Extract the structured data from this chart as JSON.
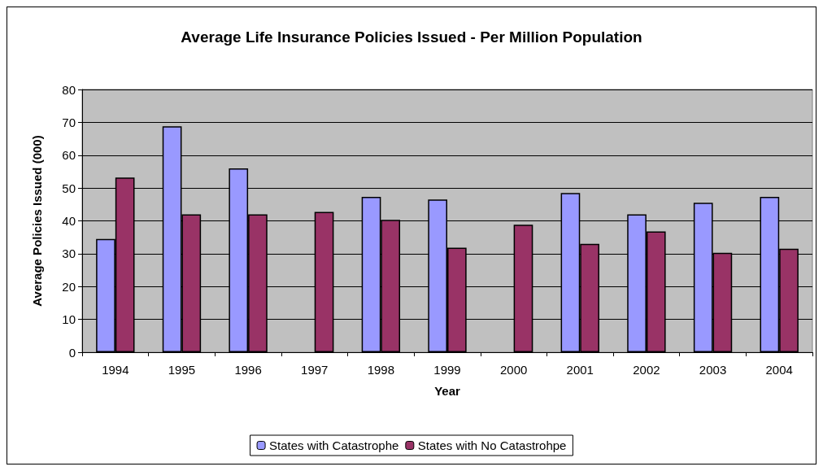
{
  "chart_data": {
    "type": "bar",
    "title": "Average Life Insurance Policies Issued - Per Million Population",
    "xlabel": "Year",
    "ylabel": "Average Policies Issued (000)",
    "categories": [
      "1994",
      "1995",
      "1996",
      "1997",
      "1998",
      "1999",
      "2000",
      "2001",
      "2002",
      "2003",
      "2004"
    ],
    "series": [
      {
        "name": "States with Catastrophe",
        "color": "#9999ff",
        "values": [
          34.5,
          68.8,
          56,
          null,
          47.3,
          46.5,
          null,
          48.5,
          42,
          45.5,
          47.3
        ]
      },
      {
        "name": "States with No Catastrohpe",
        "color": "#993366",
        "values": [
          53.2,
          42,
          42,
          42.7,
          40.3,
          31.8,
          38.8,
          33,
          36.8,
          30.3,
          31.5
        ]
      }
    ],
    "ylim": [
      0,
      80
    ],
    "yticks": [
      0,
      10,
      20,
      30,
      40,
      50,
      60,
      70,
      80
    ],
    "grid": "y",
    "legend": "bottom"
  }
}
